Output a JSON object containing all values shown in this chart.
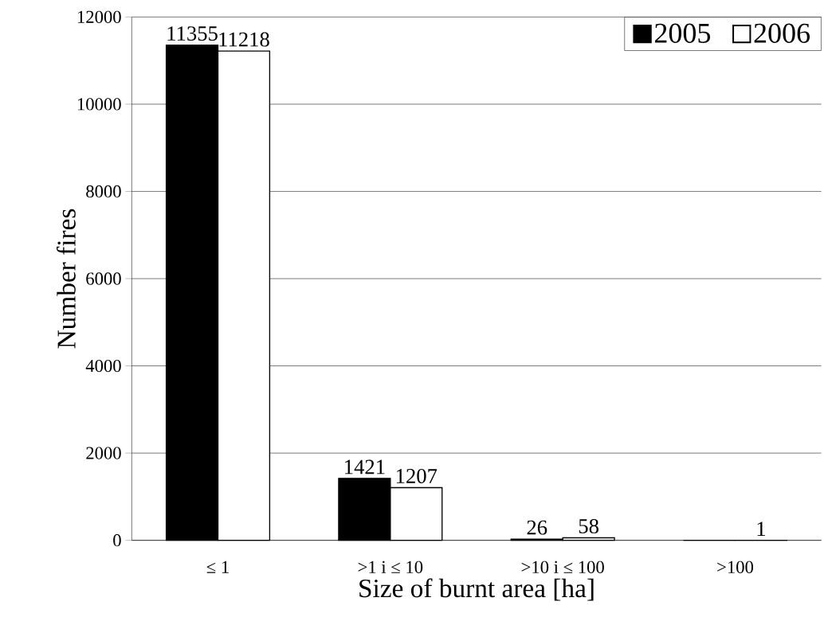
{
  "chart_data": {
    "type": "bar",
    "xlabel": "Size of burnt area [ha]",
    "ylabel": "Number fires",
    "categories": [
      "≤ 1",
      ">1 i ≤ 10",
      ">10 i ≤ 100",
      ">100"
    ],
    "series": [
      {
        "name": "2005",
        "color": "#000000",
        "values": [
          11355,
          1421,
          26,
          0
        ],
        "value_labels": [
          "11355",
          "1421",
          "26",
          null
        ]
      },
      {
        "name": "2006",
        "color": "#ffffff",
        "values": [
          11218,
          1207,
          58,
          1
        ],
        "value_labels": [
          "11218",
          "1207",
          "58",
          "1"
        ]
      }
    ],
    "ylim": [
      0,
      12000
    ],
    "yticks": [
      0,
      2000,
      4000,
      6000,
      8000,
      10000,
      12000
    ],
    "grid": "y",
    "legend": "top right"
  }
}
